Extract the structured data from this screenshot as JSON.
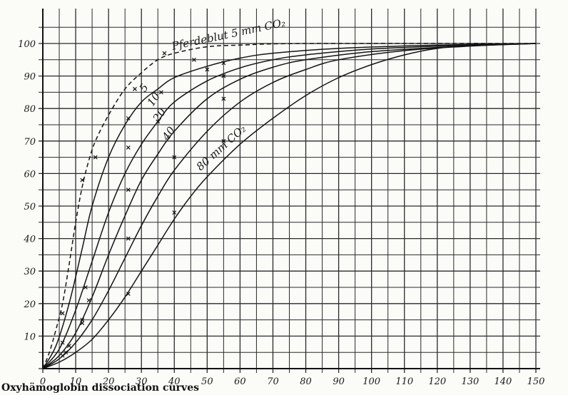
{
  "caption": "Oxyhämoglobin dissociation curves",
  "chart_data": {
    "type": "line",
    "xlim": [
      0,
      150
    ],
    "ylim": [
      0,
      100
    ],
    "x_ticks": [
      0,
      10,
      20,
      30,
      40,
      50,
      60,
      70,
      80,
      90,
      100,
      110,
      120,
      130,
      140,
      150
    ],
    "y_ticks": [
      10,
      20,
      30,
      40,
      50,
      60,
      70,
      80,
      90,
      100
    ],
    "grid": true,
    "series": [
      {
        "name": "Pferdeblut 5 mm CO₂",
        "style": "dashed",
        "points": [
          [
            0,
            0
          ],
          [
            2,
            5
          ],
          [
            4,
            12
          ],
          [
            6,
            20
          ],
          [
            8,
            32
          ],
          [
            10,
            45
          ],
          [
            12,
            56
          ],
          [
            14,
            64
          ],
          [
            16,
            70
          ],
          [
            20,
            78
          ],
          [
            25,
            86
          ],
          [
            30,
            91
          ],
          [
            35,
            95
          ],
          [
            40,
            97
          ],
          [
            50,
            99
          ],
          [
            60,
            99.5
          ],
          [
            80,
            100
          ],
          [
            150,
            100
          ]
        ]
      },
      {
        "name": "5",
        "style": "solid",
        "points": [
          [
            0,
            0
          ],
          [
            4,
            7
          ],
          [
            8,
            20
          ],
          [
            12,
            37
          ],
          [
            15,
            50
          ],
          [
            20,
            65
          ],
          [
            25,
            75
          ],
          [
            30,
            82
          ],
          [
            35,
            86
          ],
          [
            40,
            89.5
          ],
          [
            50,
            93
          ],
          [
            60,
            95.5
          ],
          [
            70,
            97
          ],
          [
            90,
            98.5
          ],
          [
            120,
            99.5
          ],
          [
            150,
            100
          ]
        ]
      },
      {
        "name": "10",
        "style": "solid",
        "points": [
          [
            0,
            0
          ],
          [
            5,
            6
          ],
          [
            10,
            18
          ],
          [
            15,
            33
          ],
          [
            20,
            48
          ],
          [
            25,
            60
          ],
          [
            30,
            69
          ],
          [
            35,
            76
          ],
          [
            40,
            82
          ],
          [
            50,
            88.5
          ],
          [
            60,
            92.5
          ],
          [
            70,
            95
          ],
          [
            80,
            96.5
          ],
          [
            100,
            98.3
          ],
          [
            130,
            99.5
          ],
          [
            150,
            100
          ]
        ]
      },
      {
        "name": "20",
        "style": "solid",
        "points": [
          [
            0,
            0
          ],
          [
            5,
            4
          ],
          [
            10,
            11
          ],
          [
            15,
            22
          ],
          [
            20,
            35
          ],
          [
            25,
            47
          ],
          [
            30,
            58
          ],
          [
            35,
            66
          ],
          [
            40,
            73
          ],
          [
            50,
            83
          ],
          [
            60,
            89
          ],
          [
            70,
            92.7
          ],
          [
            80,
            95
          ],
          [
            100,
            97.5
          ],
          [
            130,
            99.3
          ],
          [
            150,
            100
          ]
        ]
      },
      {
        "name": "40",
        "style": "solid",
        "points": [
          [
            0,
            0
          ],
          [
            5,
            3
          ],
          [
            10,
            8
          ],
          [
            15,
            15
          ],
          [
            20,
            24
          ],
          [
            25,
            34
          ],
          [
            30,
            44
          ],
          [
            35,
            53
          ],
          [
            40,
            61
          ],
          [
            50,
            73
          ],
          [
            60,
            82
          ],
          [
            70,
            88
          ],
          [
            80,
            92
          ],
          [
            90,
            95
          ],
          [
            110,
            97.8
          ],
          [
            130,
            99.2
          ],
          [
            150,
            100
          ]
        ]
      },
      {
        "name": "80 mm CO₂",
        "style": "solid",
        "points": [
          [
            0,
            0
          ],
          [
            5,
            2
          ],
          [
            10,
            5
          ],
          [
            15,
            9
          ],
          [
            20,
            15
          ],
          [
            25,
            22
          ],
          [
            30,
            30
          ],
          [
            35,
            38
          ],
          [
            40,
            46
          ],
          [
            45,
            53
          ],
          [
            50,
            59
          ],
          [
            60,
            69
          ],
          [
            70,
            77
          ],
          [
            80,
            84
          ],
          [
            90,
            89.5
          ],
          [
            100,
            93.5
          ],
          [
            110,
            96.5
          ],
          [
            120,
            98.5
          ],
          [
            130,
            99.3
          ],
          [
            150,
            100
          ]
        ]
      }
    ],
    "markers": [
      [
        [
          6,
          17
        ],
        [
          12,
          58
        ],
        [
          16,
          65
        ],
        [
          28,
          86
        ],
        [
          37,
          97
        ],
        [
          46,
          95
        ]
      ],
      [
        [
          6,
          8
        ],
        [
          13,
          25
        ],
        [
          26,
          77
        ],
        [
          36,
          85
        ],
        [
          50,
          92
        ],
        [
          55,
          94
        ]
      ],
      [
        [
          8,
          7
        ],
        [
          14,
          21
        ],
        [
          26,
          68
        ],
        [
          35,
          76
        ],
        [
          55,
          90
        ]
      ],
      [
        [
          7,
          5
        ],
        [
          12,
          14
        ],
        [
          26,
          55
        ],
        [
          40,
          65
        ],
        [
          55,
          83
        ]
      ],
      [
        [
          12,
          15
        ],
        [
          26,
          40
        ],
        [
          55,
          70
        ]
      ],
      [
        [
          6,
          4
        ],
        [
          26,
          23
        ],
        [
          40,
          48
        ]
      ]
    ]
  }
}
